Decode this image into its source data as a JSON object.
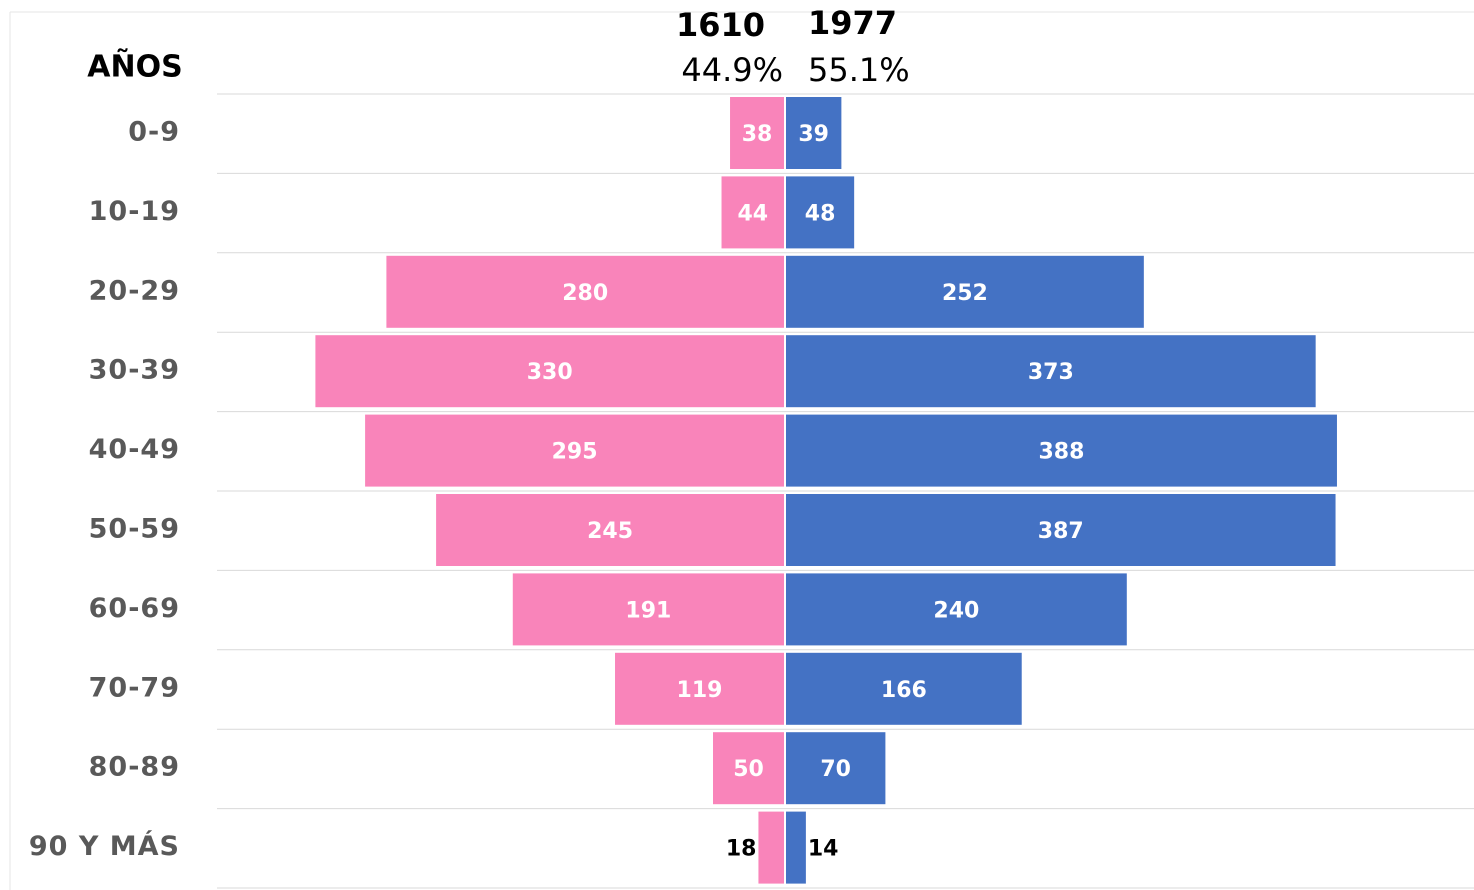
{
  "chart_data": {
    "type": "pyramid",
    "axis_title": "AÑOS",
    "categories": [
      "0-9",
      "10-19",
      "20-29",
      "30-39",
      "40-49",
      "50-59",
      "60-69",
      "70-79",
      "80-89",
      "90 Y MÁS"
    ],
    "series": [
      {
        "color": "#F984BA",
        "side": "left",
        "total": 1610,
        "share": 44.9,
        "share_label": "44.9%",
        "values": [
          38,
          44,
          280,
          330,
          295,
          245,
          191,
          119,
          50,
          18
        ]
      },
      {
        "color": "#4472C4",
        "side": "right",
        "total": 1977,
        "share": 55.1,
        "share_label": "55.1%",
        "values": [
          39,
          48,
          252,
          373,
          388,
          387,
          240,
          166,
          70,
          14
        ]
      }
    ],
    "grid": true
  }
}
